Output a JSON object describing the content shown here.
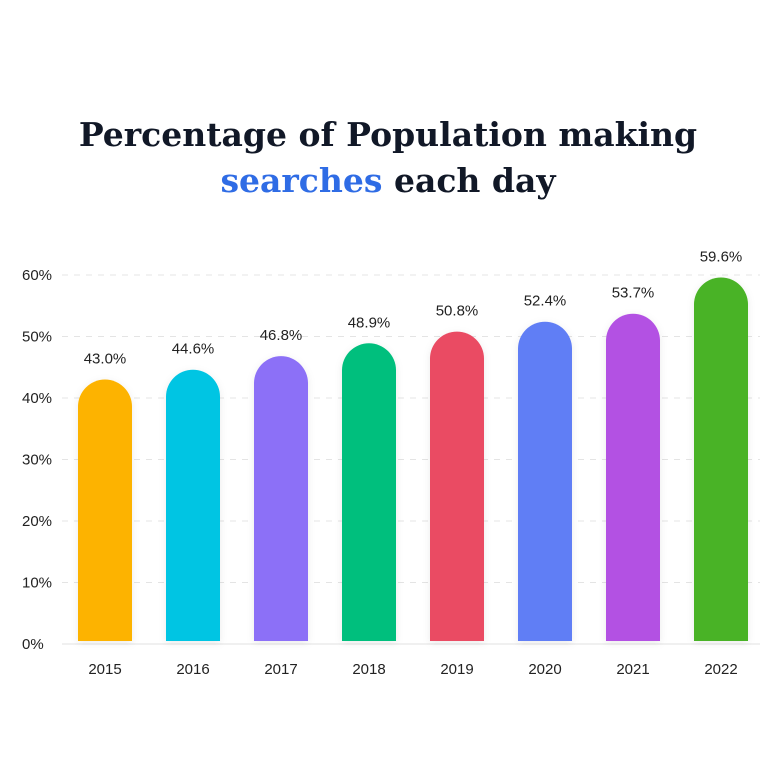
{
  "chart_data": {
    "type": "bar",
    "title_line1": "Percentage of Population making",
    "title_highlight": "searches",
    "title_rest": " each day",
    "categories": [
      "2015",
      "2016",
      "2017",
      "2018",
      "2019",
      "2020",
      "2021",
      "2022"
    ],
    "values": [
      43.0,
      44.6,
      46.8,
      48.9,
      50.8,
      52.4,
      53.7,
      59.6
    ],
    "value_labels": [
      "43.0%",
      "44.6%",
      "46.8%",
      "48.9%",
      "50.8%",
      "52.4%",
      "53.7%",
      "59.6%"
    ],
    "colors": [
      "#fdb300",
      "#00c5e3",
      "#8c6ff7",
      "#00bf7d",
      "#ea4c64",
      "#617ef5",
      "#b351e3",
      "#48b325"
    ],
    "y_ticks": [
      "0%",
      "10%",
      "20%",
      "30%",
      "40%",
      "50%",
      "60%"
    ],
    "ylim": [
      0,
      60
    ],
    "xlabel": "",
    "ylabel": "",
    "grid": true,
    "highlight_color": "#2f6ce5"
  }
}
